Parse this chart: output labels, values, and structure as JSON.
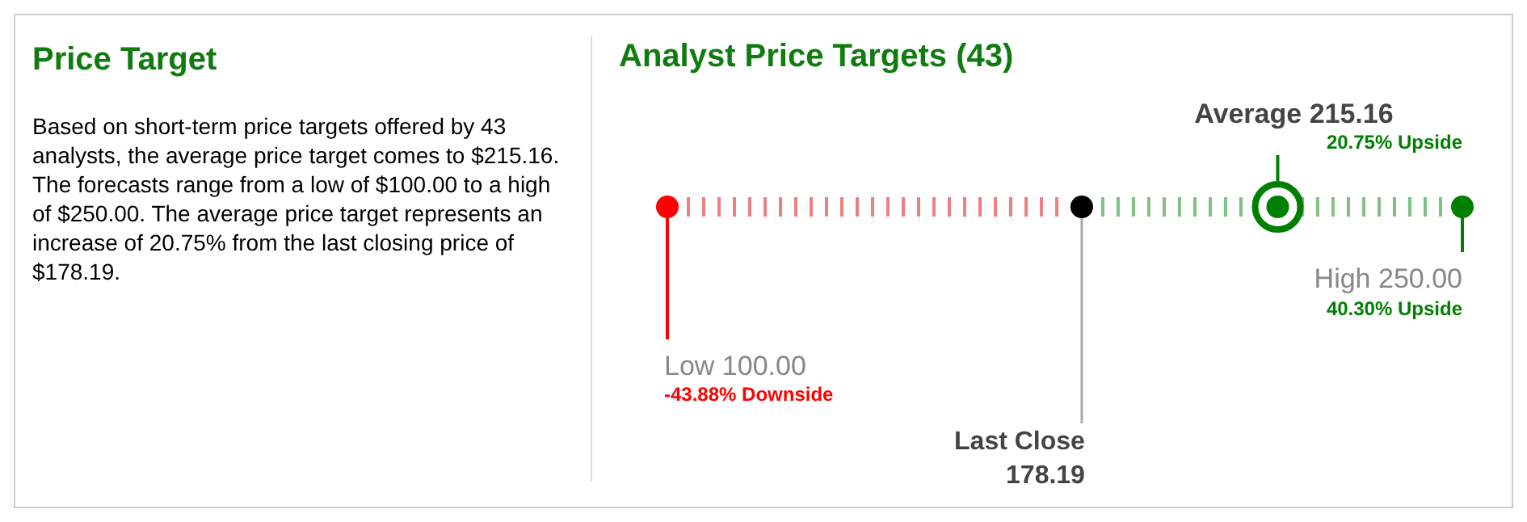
{
  "chart_data": [
    {
      "type": "other",
      "title": "Price Target",
      "annotations": [
        "Based on short-term price targets offered by 43 analysts, the average price target comes to $215.16. The forecasts range from a low of $100.00 to a high of $250.00. The average price target represents an increase of 20.75% from the last closing price of $178.19."
      ]
    },
    {
      "type": "other",
      "title": "Analyst Price Targets (43)",
      "categories": [
        "Low",
        "Last Close",
        "Average",
        "High"
      ],
      "values": [
        100,
        178.19,
        215.16,
        250
      ],
      "value_labels": [
        "100.00",
        "178.19",
        "215.16",
        "250.00"
      ],
      "colors": [
        "#ff0000",
        "#000000",
        "#008000",
        "#008000"
      ],
      "annotations": [
        "-43.88% Downside",
        "20.75% Upside",
        "40.30% Upside"
      ]
    }
  ]
}
